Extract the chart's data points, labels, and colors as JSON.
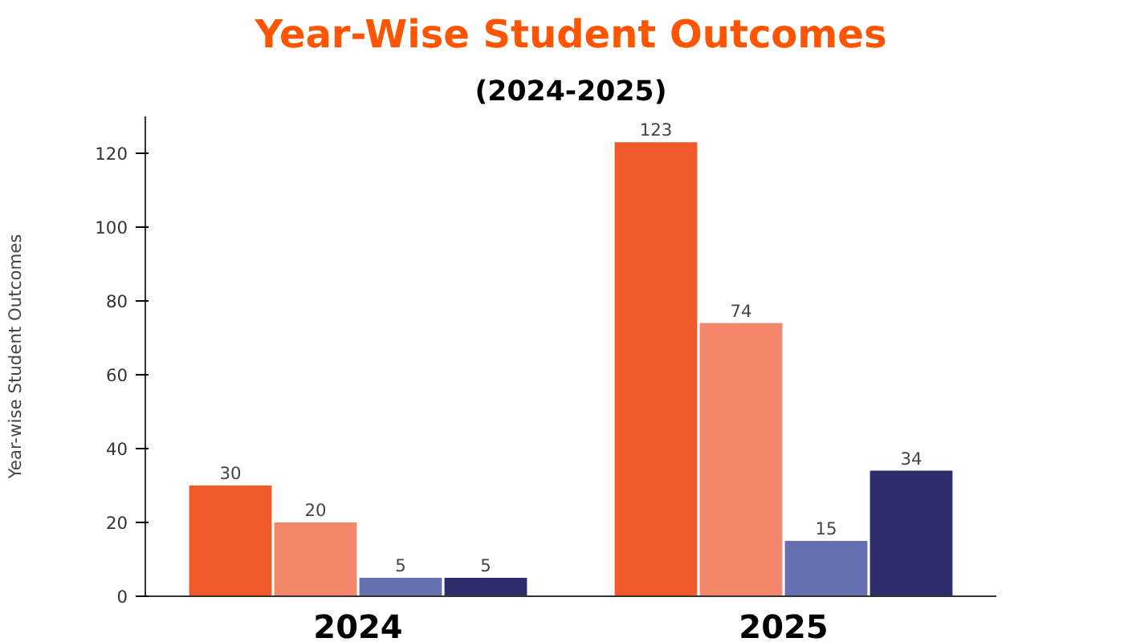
{
  "chart_data": {
    "type": "bar",
    "title": "Year-Wise Student Outcomes",
    "subtitle": "(2024-2025)",
    "ylabel": "Year-wise Student Outcomes",
    "categories": [
      "2024",
      "2025"
    ],
    "series": [
      {
        "color": "#f05a2b",
        "values": [
          30,
          123
        ]
      },
      {
        "color": "#f4866a",
        "values": [
          20,
          74
        ]
      },
      {
        "color": "#6670b0",
        "values": [
          5,
          15
        ]
      },
      {
        "color": "#2b2e6b",
        "values": [
          5,
          34
        ]
      }
    ],
    "ylim": [
      0,
      130
    ],
    "yticks": [
      0,
      20,
      40,
      60,
      80,
      100,
      120
    ],
    "data_labels": true,
    "grid": false
  }
}
